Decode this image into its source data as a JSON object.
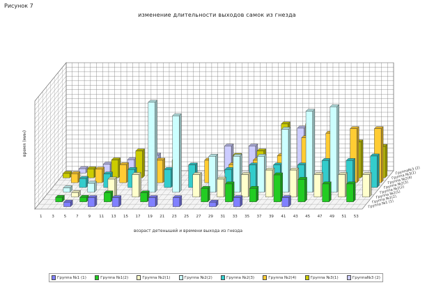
{
  "figure_label": "Рисунок 7",
  "chart_data": {
    "type": "bar",
    "projection": "3d",
    "title": "изменение длительности выходов самок из гнезда",
    "xlabel": "возраст детенышей и времени выхода из гнезда",
    "ylabel": "время (мин)",
    "grid": true,
    "legend_position": "bottom",
    "ylim": [
      0,
      24
    ],
    "categories": [
      "1",
      "3",
      "5",
      "7",
      "9",
      "11",
      "13",
      "15",
      "17",
      "19",
      "21",
      "23",
      "25",
      "27",
      "29",
      "31",
      "33",
      "35",
      "37",
      "39",
      "41",
      "43",
      "45",
      "47",
      "49",
      "51",
      "53"
    ],
    "series": [
      {
        "name": "Группа №1 (1)",
        "color": "#8080ff",
        "values": [
          0,
          0,
          1,
          0,
          2,
          0,
          2,
          0,
          0,
          2,
          0,
          2,
          0,
          0,
          1,
          0,
          2,
          0,
          0,
          0,
          2,
          0,
          0,
          0,
          0,
          0,
          0
        ]
      },
      {
        "name": "Группа №1(2)",
        "color": "#22cc22",
        "values": [
          0,
          1,
          0,
          1,
          0,
          2,
          0,
          0,
          2,
          0,
          0,
          0,
          0,
          3,
          0,
          4,
          0,
          3,
          0,
          6,
          0,
          5,
          0,
          4,
          0,
          4,
          0
        ]
      },
      {
        "name": "Группа №2(1)",
        "color": "#ffffcc",
        "values": [
          0,
          0,
          1,
          0,
          0,
          4,
          0,
          5,
          0,
          0,
          0,
          0,
          5,
          0,
          4,
          0,
          5,
          0,
          6,
          0,
          6,
          0,
          5,
          0,
          5,
          0,
          5
        ]
      },
      {
        "name": "Группа №2(2)",
        "color": "#ccffff",
        "values": [
          0,
          1,
          0,
          2,
          0,
          0,
          0,
          0,
          20,
          0,
          17,
          0,
          0,
          8,
          0,
          8,
          0,
          8,
          0,
          14,
          0,
          18,
          0,
          19,
          0,
          0,
          0
        ]
      },
      {
        "name": "Группа №2(3)",
        "color": "#33cccc",
        "values": [
          0,
          0,
          2,
          0,
          3,
          0,
          4,
          0,
          0,
          4,
          0,
          5,
          0,
          0,
          4,
          0,
          5,
          0,
          5,
          0,
          5,
          0,
          6,
          0,
          6,
          0,
          7
        ]
      },
      {
        "name": "Группа №2(4)",
        "color": "#ffcc33",
        "values": [
          0,
          2,
          0,
          3,
          0,
          4,
          0,
          0,
          5,
          0,
          0,
          0,
          5,
          0,
          4,
          0,
          5,
          0,
          6,
          0,
          10,
          0,
          11,
          0,
          12,
          0,
          12
        ]
      },
      {
        "name": "Группа №3(1)",
        "color": "#cccc00",
        "values": [
          1,
          0,
          2,
          0,
          4,
          0,
          6,
          0,
          0,
          4,
          0,
          0,
          3,
          0,
          5,
          0,
          6,
          0,
          12,
          0,
          12,
          0,
          10,
          0,
          8,
          0,
          7
        ]
      },
      {
        "name": "Группа№3 (2)",
        "color": "#ccccff",
        "values": [
          0,
          1,
          0,
          2,
          0,
          3,
          0,
          4,
          0,
          0,
          0,
          0,
          0,
          6,
          0,
          6,
          0,
          0,
          0,
          10,
          0,
          0,
          0,
          0,
          0,
          0,
          0
        ]
      }
    ]
  }
}
